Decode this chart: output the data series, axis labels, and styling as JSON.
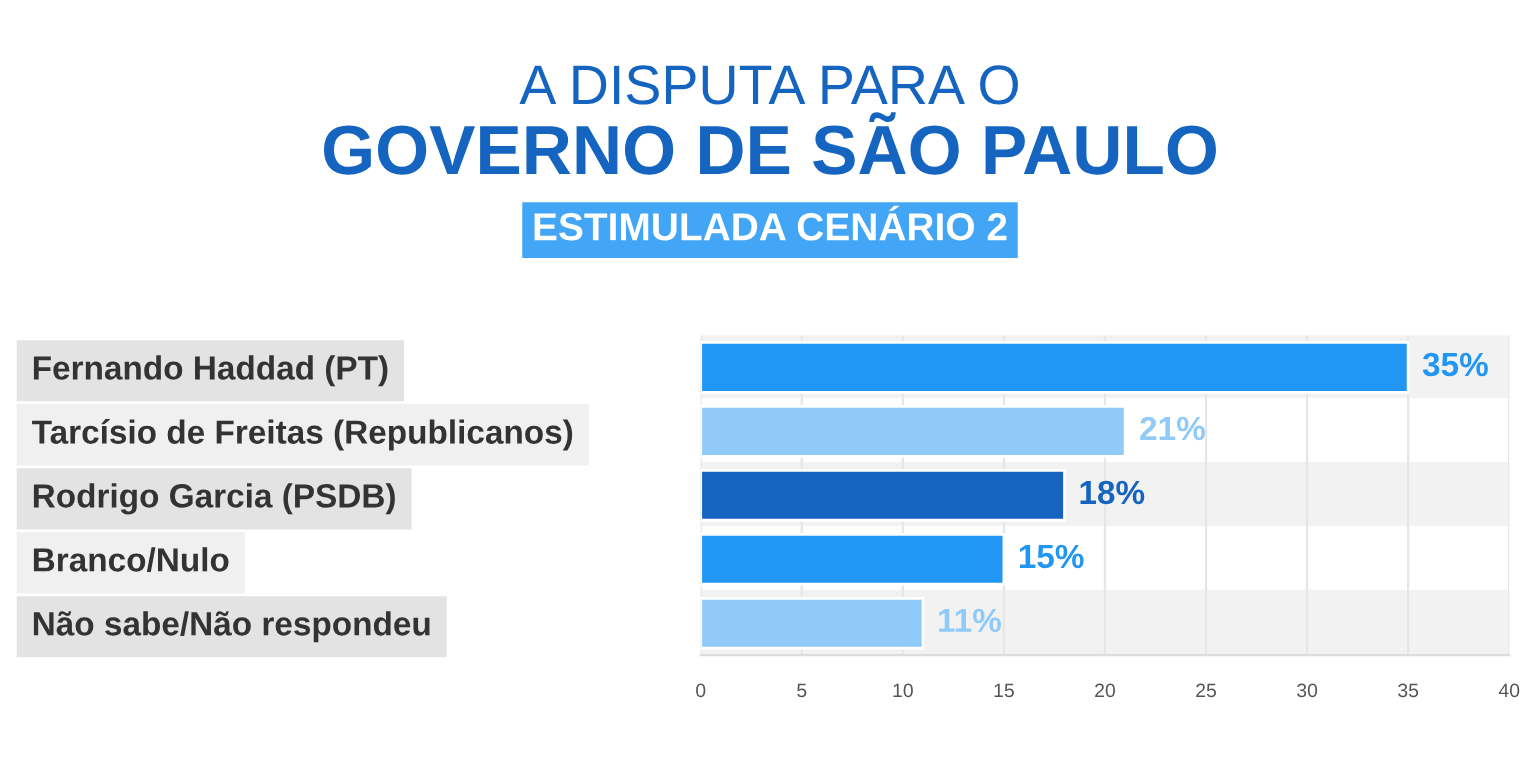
{
  "chart_data": {
    "type": "bar",
    "orientation": "horizontal",
    "title": "A DISPUTA PARA O",
    "subtitle": "GOVERNO DE SÃO PAULO",
    "annotations": [
      "ESTIMULADA CENÁRIO 2"
    ],
    "categories": [
      "Fernando Haddad (PT)",
      "Tarcísio de Freitas (Republicanos)",
      "Rodrigo Garcia (PSDB)",
      "Branco/Nulo",
      "Não sabe/Não respondeu"
    ],
    "values": [
      35,
      21,
      18,
      15,
      11
    ],
    "colors": [
      "#2196f3",
      "#90caf9",
      "#1565c0",
      "#2196f3",
      "#90caf9"
    ],
    "value_labels": [
      "35%",
      "21%",
      "18%",
      "15%",
      "11%"
    ],
    "xlim": [
      0,
      40
    ],
    "xticks": [
      0,
      5,
      10,
      15,
      20,
      25,
      30,
      35,
      40
    ],
    "grid": "x",
    "legend": false
  }
}
